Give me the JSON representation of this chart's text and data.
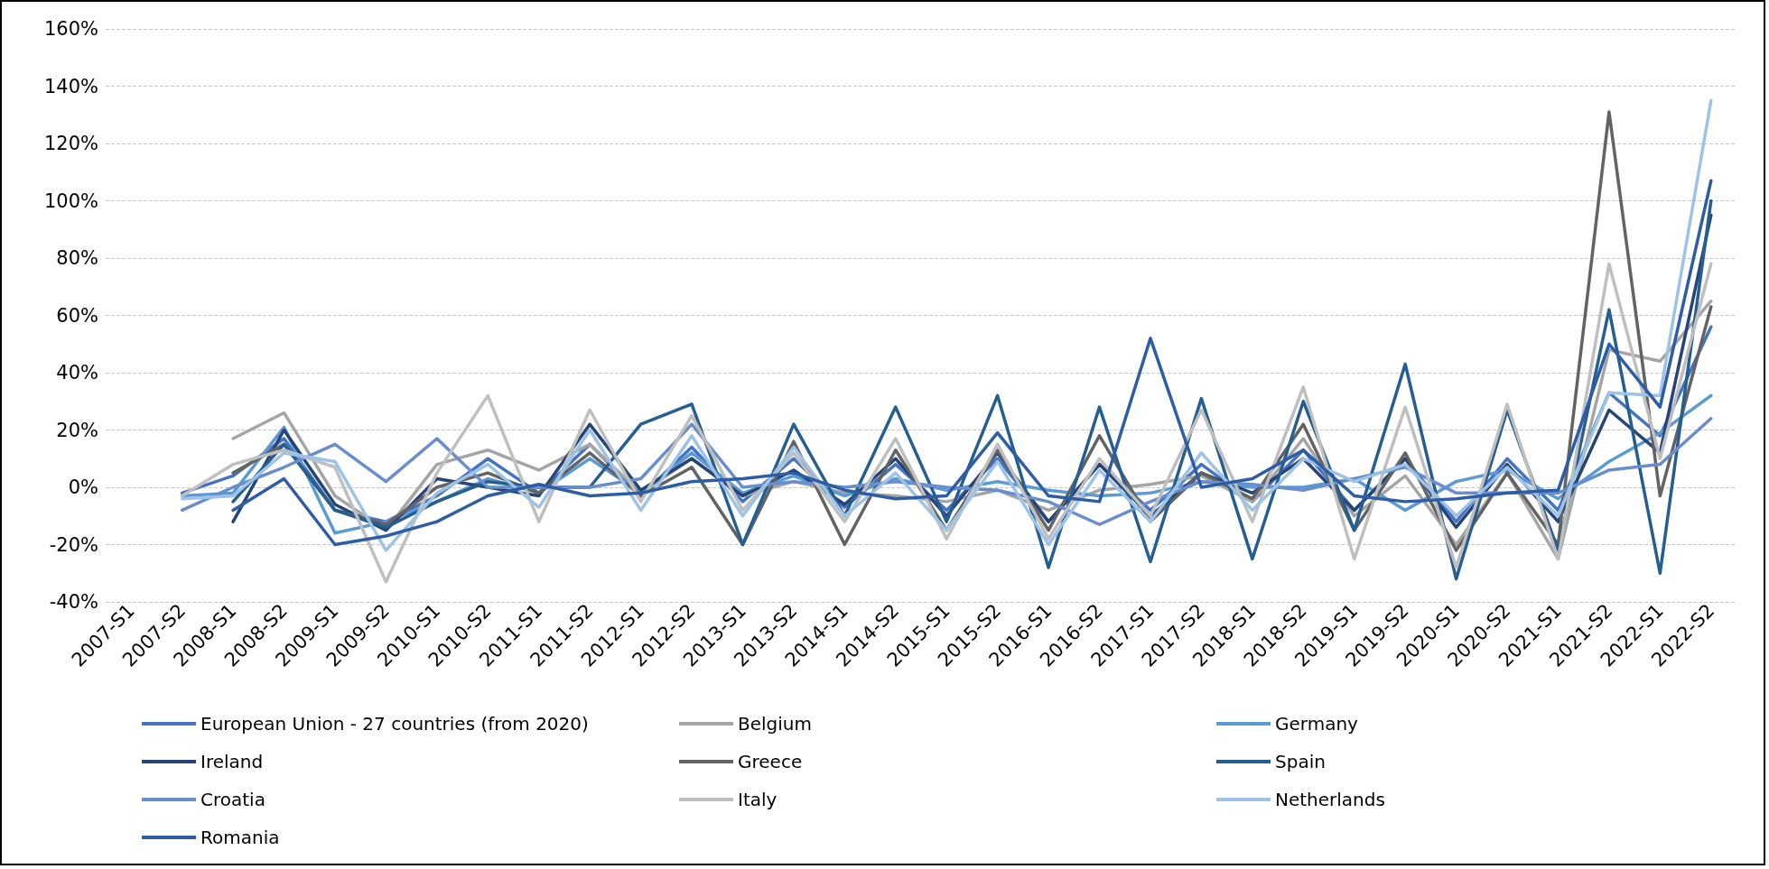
{
  "chart_data": {
    "type": "line",
    "categories": [
      "2007-S1",
      "2007-S2",
      "2008-S1",
      "2008-S2",
      "2009-S1",
      "2009-S2",
      "2010-S1",
      "2010-S2",
      "2011-S1",
      "2011-S2",
      "2012-S1",
      "2012-S2",
      "2013-S1",
      "2013-S2",
      "2014-S1",
      "2014-S2",
      "2015-S1",
      "2015-S2",
      "2016-S1",
      "2016-S2",
      "2017-S1",
      "2017-S2",
      "2018-S1",
      "2018-S2",
      "2019-S1",
      "2019-S2",
      "2020-S1",
      "2020-S2",
      "2021-S1",
      "2021-S2",
      "2022-S1",
      "2022-S2"
    ],
    "series": [
      {
        "name": "European Union - 27 countries (from 2020)",
        "color": "#4472c4",
        "values": [
          null,
          -2,
          4,
          17,
          -8,
          -12,
          -3,
          10,
          -2,
          15,
          -3,
          14,
          -5,
          10,
          -7,
          8,
          -8,
          10,
          -12,
          8,
          -8,
          8,
          -5,
          13,
          -8,
          10,
          -12,
          10,
          -8,
          33,
          18,
          56
        ]
      },
      {
        "name": "Belgium",
        "color": "#a5a5a5",
        "values": [
          null,
          null,
          17,
          26,
          -3,
          -15,
          8,
          13,
          6,
          15,
          -2,
          10,
          -3,
          2,
          -2,
          -3,
          -5,
          -1,
          -8,
          -1,
          1,
          4,
          -5,
          17,
          -10,
          4,
          -20,
          5,
          -25,
          48,
          44,
          65
        ]
      },
      {
        "name": "Germany",
        "color": "#5b9bd5",
        "values": [
          null,
          -3,
          -2,
          21,
          -16,
          -12,
          -5,
          3,
          -2,
          10,
          -2,
          12,
          -2,
          4,
          -3,
          3,
          -1,
          2,
          -1,
          -3,
          -2,
          2,
          0,
          0,
          3,
          -8,
          2,
          6,
          -4,
          9,
          19,
          32
        ]
      },
      {
        "name": "Ireland",
        "color": "#264478",
        "values": [
          null,
          null,
          -12,
          20,
          -6,
          -15,
          3,
          0,
          -3,
          22,
          -1,
          10,
          -3,
          6,
          -6,
          10,
          -10,
          12,
          -12,
          8,
          -10,
          5,
          -2,
          10,
          -8,
          10,
          -14,
          8,
          -12,
          27,
          12,
          95
        ]
      },
      {
        "name": "Greece",
        "color": "#636363",
        "values": [
          null,
          null,
          5,
          15,
          -8,
          -13,
          0,
          5,
          -2,
          12,
          -3,
          7,
          -20,
          16,
          -20,
          13,
          -15,
          13,
          -15,
          18,
          -12,
          5,
          -4,
          22,
          -15,
          12,
          -22,
          5,
          -20,
          131,
          -3,
          63
        ]
      },
      {
        "name": "Spain",
        "color": "#255e91",
        "values": [
          null,
          null,
          -5,
          15,
          -8,
          -14,
          -5,
          2,
          0,
          0,
          22,
          29,
          -20,
          22,
          -10,
          28,
          -12,
          32,
          -28,
          28,
          -26,
          31,
          -25,
          30,
          -15,
          43,
          -32,
          27,
          -22,
          62,
          -30,
          100
        ]
      },
      {
        "name": "Croatia",
        "color": "#698ed0",
        "values": [
          null,
          -8,
          0,
          7,
          15,
          2,
          17,
          0,
          0,
          0,
          3,
          22,
          0,
          2,
          0,
          2,
          0,
          -1,
          -5,
          -13,
          -5,
          2,
          1,
          -1,
          3,
          7,
          -2,
          -2,
          -2,
          6,
          8,
          24
        ]
      },
      {
        "name": "Italy",
        "color": "#bfbfbf",
        "values": [
          null,
          -3,
          8,
          13,
          7,
          -33,
          5,
          32,
          -12,
          27,
          -5,
          25,
          -8,
          12,
          -12,
          17,
          -18,
          15,
          -18,
          10,
          -10,
          27,
          -12,
          35,
          -25,
          28,
          -28,
          29,
          -25,
          78,
          10,
          78
        ]
      },
      {
        "name": "Netherlands",
        "color": "#9dc3e6",
        "values": [
          null,
          -4,
          -3,
          12,
          9,
          -22,
          -2,
          8,
          -7,
          20,
          -8,
          18,
          -10,
          14,
          -10,
          5,
          -15,
          9,
          -20,
          6,
          -12,
          12,
          -8,
          10,
          2,
          8,
          -10,
          7,
          -10,
          33,
          32,
          135
        ]
      },
      {
        "name": "Romania",
        "color": "#2e5da8",
        "values": [
          null,
          null,
          -8,
          3,
          -20,
          -17,
          -12,
          -3,
          1,
          -3,
          -2,
          2,
          3,
          5,
          -1,
          -4,
          -3,
          19,
          -3,
          -5,
          52,
          0,
          3,
          13,
          -3,
          -5,
          -4,
          -2,
          -1,
          50,
          28,
          107
        ]
      }
    ],
    "ylim": [
      -40,
      160
    ],
    "yticks": [
      {
        "value": -40,
        "label": "-40%"
      },
      {
        "value": -20,
        "label": "-20%"
      },
      {
        "value": 0,
        "label": "0%"
      },
      {
        "value": 20,
        "label": "20%"
      },
      {
        "value": 40,
        "label": "40%"
      },
      {
        "value": 60,
        "label": "60%"
      },
      {
        "value": 80,
        "label": "80%"
      },
      {
        "value": 100,
        "label": "100%"
      },
      {
        "value": 120,
        "label": "120%"
      },
      {
        "value": 140,
        "label": "140%"
      },
      {
        "value": 160,
        "label": "160%"
      }
    ],
    "grid": "y",
    "legend": "bottom",
    "marker": "none",
    "line_style": "solid"
  }
}
